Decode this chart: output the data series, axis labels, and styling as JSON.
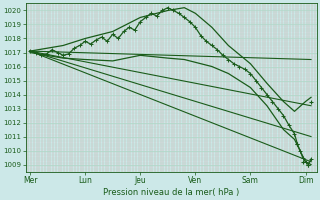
{
  "background_color": "#cce8e8",
  "grid_color_h": "#b0d8c8",
  "grid_color_v": "#d4a8a8",
  "line_color": "#1a5c1a",
  "title": "Pression niveau de la mer( hPa )",
  "ylim": [
    1008.5,
    1020.5
  ],
  "yticks": [
    1009,
    1010,
    1011,
    1012,
    1013,
    1014,
    1015,
    1016,
    1017,
    1018,
    1019,
    1020
  ],
  "xtick_labels": [
    "Mer",
    "Lun",
    "Jeu",
    "Ven",
    "Sam",
    "Dim"
  ],
  "xtick_positions": [
    0,
    1,
    2,
    3,
    4,
    5
  ],
  "xlim": [
    -0.08,
    5.2
  ],
  "straight_lines": [
    {
      "x0": 0,
      "y0": 1017.1,
      "x1": 5.1,
      "y1": 1016.5
    },
    {
      "x0": 0,
      "y0": 1017.1,
      "x1": 5.1,
      "y1": 1013.2
    },
    {
      "x0": 0,
      "y0": 1017.1,
      "x1": 5.1,
      "y1": 1011.0
    },
    {
      "x0": 0,
      "y0": 1017.1,
      "x1": 5.1,
      "y1": 1009.2
    }
  ],
  "envelope_upper": {
    "x": [
      0.0,
      0.3,
      0.6,
      1.0,
      1.5,
      2.0,
      2.5,
      2.8,
      3.0,
      3.3,
      3.6,
      4.0,
      4.3,
      4.6,
      4.8,
      5.0,
      5.1
    ],
    "y": [
      1017.1,
      1017.3,
      1017.5,
      1018.0,
      1018.5,
      1019.5,
      1020.0,
      1020.2,
      1019.8,
      1018.8,
      1017.5,
      1016.2,
      1014.8,
      1013.5,
      1012.8,
      1013.5,
      1013.8
    ]
  },
  "envelope_lower": {
    "x": [
      0.0,
      0.3,
      0.6,
      1.0,
      1.5,
      2.0,
      2.5,
      2.8,
      3.0,
      3.3,
      3.6,
      4.0,
      4.3,
      4.6,
      4.8,
      5.0,
      5.1
    ],
    "y": [
      1017.0,
      1016.8,
      1016.6,
      1016.5,
      1016.4,
      1016.8,
      1016.6,
      1016.5,
      1016.3,
      1016.0,
      1015.5,
      1014.5,
      1013.2,
      1011.5,
      1010.8,
      1009.2,
      1009.0
    ]
  },
  "main_x": [
    0.0,
    0.1,
    0.2,
    0.3,
    0.4,
    0.5,
    0.6,
    0.7,
    0.8,
    0.9,
    1.0,
    1.1,
    1.2,
    1.3,
    1.4,
    1.5,
    1.6,
    1.7,
    1.8,
    1.9,
    2.0,
    2.1,
    2.2,
    2.3,
    2.4,
    2.5,
    2.6,
    2.7,
    2.8,
    2.9,
    3.0,
    3.1,
    3.2,
    3.3,
    3.4,
    3.5,
    3.6,
    3.7,
    3.8,
    3.9,
    4.0,
    4.1,
    4.2,
    4.3,
    4.4,
    4.5,
    4.6,
    4.7,
    4.8,
    4.85,
    4.9,
    4.95,
    5.0,
    5.05,
    5.1
  ],
  "main_y": [
    1017.1,
    1017.0,
    1016.8,
    1016.9,
    1017.2,
    1017.0,
    1016.8,
    1016.9,
    1017.3,
    1017.5,
    1017.8,
    1017.6,
    1017.9,
    1018.1,
    1017.8,
    1018.3,
    1018.0,
    1018.5,
    1018.8,
    1018.6,
    1019.2,
    1019.5,
    1019.8,
    1019.6,
    1020.0,
    1020.2,
    1020.0,
    1019.8,
    1019.5,
    1019.2,
    1018.8,
    1018.2,
    1017.8,
    1017.5,
    1017.2,
    1016.8,
    1016.5,
    1016.2,
    1016.0,
    1015.8,
    1015.5,
    1015.0,
    1014.5,
    1014.0,
    1013.5,
    1013.0,
    1012.5,
    1011.8,
    1011.2,
    1010.5,
    1010.0,
    1009.5,
    1009.2,
    1009.0,
    1009.4
  ]
}
